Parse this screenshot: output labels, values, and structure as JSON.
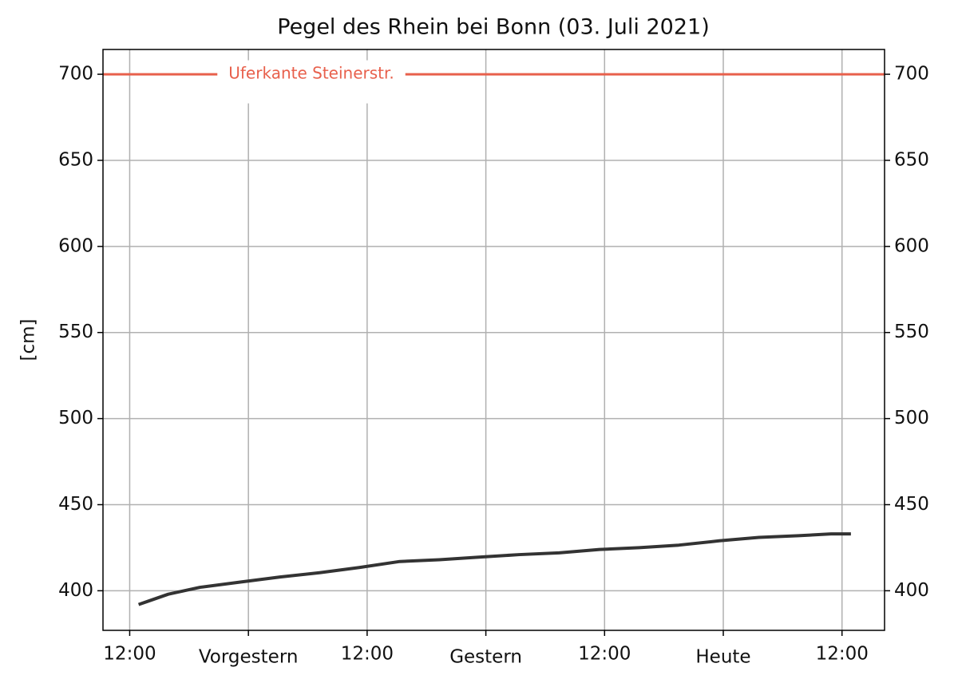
{
  "chart_data": {
    "type": "line",
    "title": "Pegel des Rhein bei Bonn (03. Juli 2021)",
    "y_label": "[cm]",
    "x": [
      0.9,
      1.9,
      3.9,
      7.1,
      11.1,
      15.2,
      19.2,
      23.2,
      27.3,
      31.3,
      35.3,
      39.4,
      43.4,
      47.5,
      51.5,
      55.5,
      59.6,
      63.6,
      67.6,
      70.9,
      72.9
    ],
    "series": [
      {
        "name": "Pegel",
        "color": "#333333",
        "values": [
          392,
          394,
          398,
          402,
          405,
          408,
          410.5,
          413.5,
          417,
          418,
          419.5,
          421,
          422,
          424,
          425,
          426.5,
          429,
          431,
          432,
          433,
          433
        ]
      }
    ],
    "reference_line": {
      "label": "Uferkante Steinerstr.",
      "value": 700,
      "color": "#e8604c"
    },
    "xlim": [
      -2.7,
      76.3
    ],
    "xticks": [
      {
        "value": 0,
        "label": "12:00"
      },
      {
        "value": 12,
        "label": "Vorgestern"
      },
      {
        "value": 24,
        "label": "12:00"
      },
      {
        "value": 36,
        "label": "Gestern"
      },
      {
        "value": 48,
        "label": "12:00"
      },
      {
        "value": 60,
        "label": "Heute"
      },
      {
        "value": 72,
        "label": "12:00"
      }
    ],
    "ylim": [
      377,
      714.4
    ],
    "yticks": [
      400,
      450,
      500,
      550,
      600,
      650,
      700
    ],
    "grid": true
  }
}
